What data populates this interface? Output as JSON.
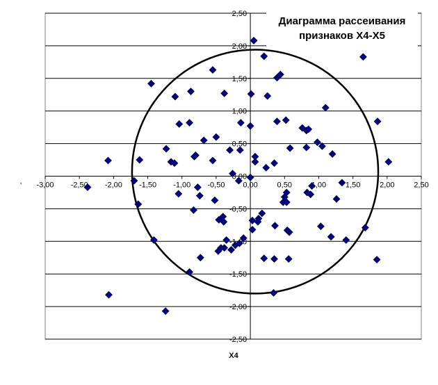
{
  "chart_data": {
    "type": "scatter",
    "title_lines": [
      "Диаграмма рассеивания",
      "признаков X4-X5"
    ],
    "xlabel": "X4",
    "ylabel": ",",
    "xlim": [
      -3.0,
      2.5
    ],
    "ylim": [
      -2.5,
      2.5
    ],
    "x_ticks": [
      "-3,00",
      "-2,50",
      "-2,00",
      "-1,50",
      "-1,00",
      "-0,50",
      "0,00",
      "0,50",
      "1,00",
      "1,50",
      "2,00",
      "2,50"
    ],
    "y_ticks": [
      "2,50",
      "2,00",
      "1,50",
      "1,00",
      "0,50",
      "0,00",
      "-0,50",
      "-1,00",
      "-1,50",
      "-2,00",
      "-2,50"
    ],
    "grid": "horizontal",
    "marker": "diamond",
    "marker_color": "#000080",
    "circle": {
      "cx": 0.07,
      "cy": 0.07,
      "rx": 1.8,
      "ry": 1.87
    },
    "points": [
      [
        0.05,
        2.08
      ],
      [
        0.2,
        1.84
      ],
      [
        1.65,
        1.83
      ],
      [
        -0.55,
        1.63
      ],
      [
        0.44,
        1.56
      ],
      [
        0.39,
        1.51
      ],
      [
        -1.45,
        1.42
      ],
      [
        -0.87,
        1.3
      ],
      [
        -0.38,
        1.27
      ],
      [
        0.01,
        1.26
      ],
      [
        0.25,
        1.23
      ],
      [
        -1.1,
        1.22
      ],
      [
        1.1,
        1.05
      ],
      [
        0.52,
        0.86
      ],
      [
        0.39,
        0.84
      ],
      [
        1.86,
        0.84
      ],
      [
        -0.14,
        0.82
      ],
      [
        -0.89,
        0.82
      ],
      [
        -1.04,
        0.8
      ],
      [
        0.0,
        0.77
      ],
      [
        0.76,
        0.74
      ],
      [
        0.82,
        0.7
      ],
      [
        0.85,
        0.72
      ],
      [
        -0.68,
        0.55
      ],
      [
        -0.5,
        0.6
      ],
      [
        0.98,
        0.52
      ],
      [
        1.05,
        0.46
      ],
      [
        0.58,
        0.43
      ],
      [
        0.82,
        0.44
      ],
      [
        -1.23,
        0.42
      ],
      [
        -0.3,
        0.4
      ],
      [
        -0.15,
        0.4
      ],
      [
        1.2,
        0.34
      ],
      [
        -0.8,
        0.32
      ],
      [
        -0.82,
        0.3
      ],
      [
        0.07,
        0.3
      ],
      [
        0.07,
        0.22
      ],
      [
        -2.08,
        0.24
      ],
      [
        -1.62,
        0.25
      ],
      [
        -0.55,
        0.24
      ],
      [
        2.02,
        0.22
      ],
      [
        -1.16,
        0.22
      ],
      [
        -1.11,
        0.2
      ],
      [
        0.35,
        0.2
      ],
      [
        0.23,
        0.13
      ],
      [
        -0.26,
        0.04
      ],
      [
        0.0,
        -0.02
      ],
      [
        -0.17,
        -0.07
      ],
      [
        -1.7,
        -0.07
      ],
      [
        1.34,
        -0.1
      ],
      [
        0.9,
        -0.15
      ],
      [
        -2.38,
        -0.17
      ],
      [
        -0.77,
        -0.17
      ],
      [
        0.53,
        -0.25
      ],
      [
        -1.05,
        -0.27
      ],
      [
        0.83,
        -0.25
      ],
      [
        0.88,
        -0.28
      ],
      [
        -0.74,
        -0.3
      ],
      [
        0.5,
        -0.32
      ],
      [
        1.26,
        -0.35
      ],
      [
        0.48,
        -0.4
      ],
      [
        -0.52,
        -0.37
      ],
      [
        -1.64,
        -0.43
      ],
      [
        0.53,
        -0.4
      ],
      [
        -0.83,
        -0.52
      ],
      [
        0.17,
        -0.57
      ],
      [
        -0.4,
        -0.62
      ],
      [
        0.12,
        -0.65
      ],
      [
        -0.46,
        -0.67
      ],
      [
        0.03,
        -0.68
      ],
      [
        -0.39,
        -0.7
      ],
      [
        0.11,
        -0.7
      ],
      [
        0.36,
        -0.76
      ],
      [
        1.03,
        -0.77
      ],
      [
        1.68,
        -0.79
      ],
      [
        0.03,
        -0.82
      ],
      [
        0.54,
        -0.83
      ],
      [
        0.57,
        -0.86
      ],
      [
        1.18,
        -0.93
      ],
      [
        -0.1,
        -0.95
      ],
      [
        -1.41,
        -0.98
      ],
      [
        -0.35,
        -0.98
      ],
      [
        1.4,
        -0.98
      ],
      [
        -0.16,
        -1.03
      ],
      [
        -0.22,
        -1.06
      ],
      [
        -0.38,
        -1.1
      ],
      [
        -0.28,
        -1.13
      ],
      [
        -0.43,
        -1.1
      ],
      [
        -0.47,
        -1.15
      ],
      [
        0.2,
        -1.26
      ],
      [
        0.35,
        -1.27
      ],
      [
        -0.73,
        -1.25
      ],
      [
        0.56,
        -1.27
      ],
      [
        1.85,
        -1.28
      ],
      [
        -0.89,
        -1.47
      ],
      [
        0.34,
        -1.79
      ],
      [
        -2.07,
        -1.82
      ],
      [
        -1.24,
        -2.07
      ]
    ]
  }
}
